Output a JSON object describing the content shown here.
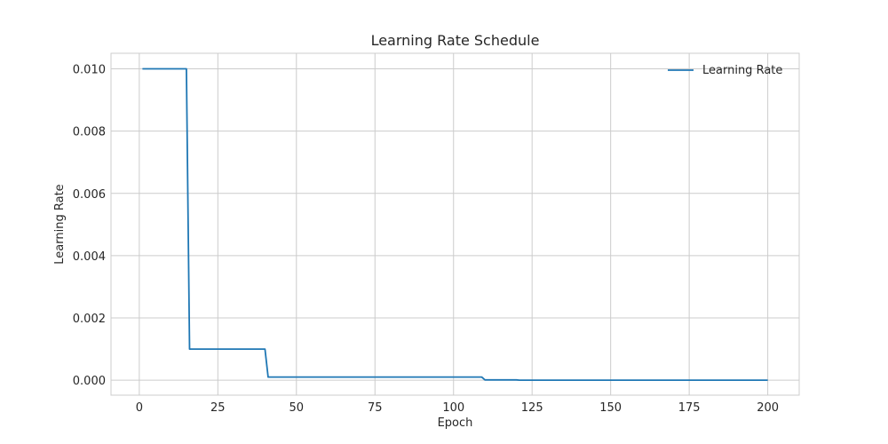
{
  "chart_data": {
    "type": "line",
    "title": "Learning Rate Schedule",
    "xlabel": "Epoch",
    "ylabel": "Learning Rate",
    "xlim": [
      -9,
      210
    ],
    "ylim": [
      -0.00048,
      0.0105
    ],
    "xticks": [
      0,
      25,
      50,
      75,
      100,
      125,
      150,
      175,
      200
    ],
    "xtick_labels": [
      "0",
      "25",
      "50",
      "75",
      "100",
      "125",
      "150",
      "175",
      "200"
    ],
    "yticks": [
      0.0,
      0.002,
      0.004,
      0.006,
      0.008,
      0.01
    ],
    "ytick_labels": [
      "0.000",
      "0.002",
      "0.004",
      "0.006",
      "0.008",
      "0.010"
    ],
    "grid": true,
    "legend": {
      "position": "top-right",
      "entries": [
        "Learning Rate"
      ]
    },
    "colors": {
      "line": "#1f77b4",
      "grid": "#cccccc",
      "text": "#262626"
    },
    "series": [
      {
        "name": "Learning Rate",
        "x": [
          1,
          15,
          16,
          40,
          41,
          109,
          110,
          120,
          121,
          200
        ],
        "y": [
          0.01,
          0.01,
          0.001,
          0.001,
          0.0001,
          0.0001,
          1e-05,
          1e-05,
          1e-06,
          1e-06
        ]
      }
    ]
  }
}
